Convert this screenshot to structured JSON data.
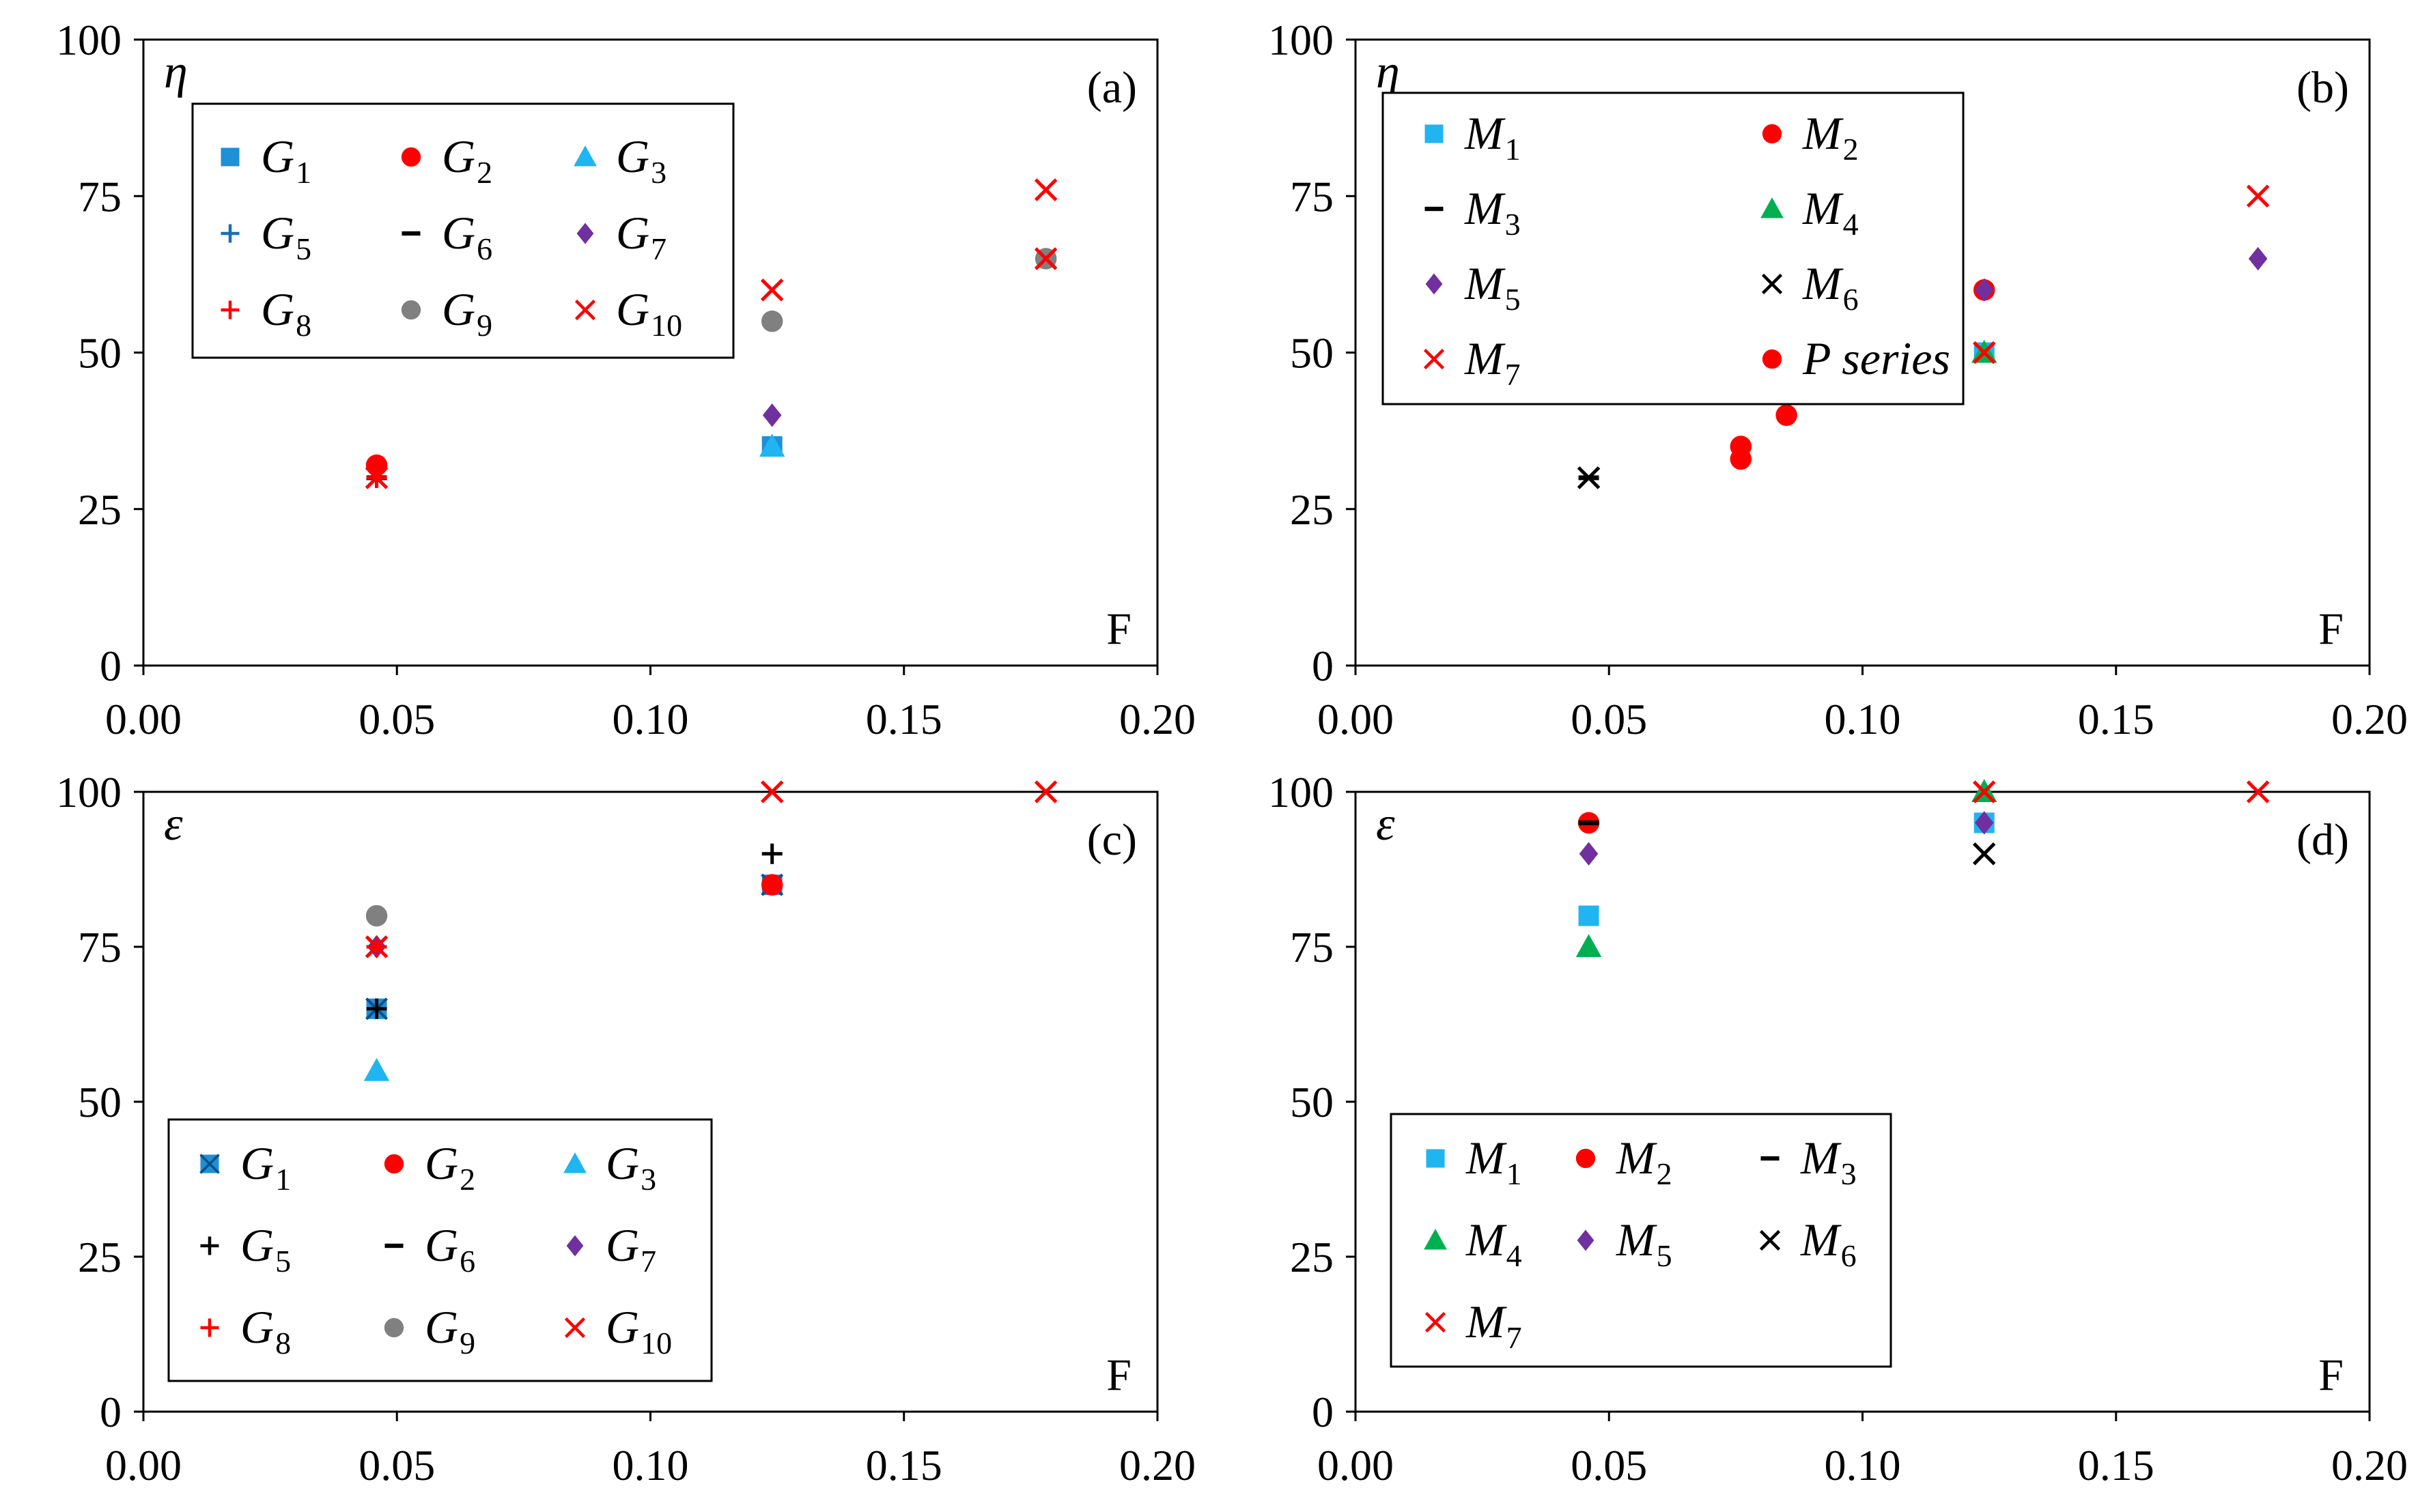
{
  "chart_data": [
    {
      "type": "scatter",
      "panel_label": "(a)",
      "ylabel": "η",
      "xlabel": "F",
      "xlim": [
        0,
        0.2
      ],
      "ylim": [
        0,
        100
      ],
      "xticks": [
        "0.00",
        "0.05",
        "0.10",
        "0.15",
        "0.20"
      ],
      "yticks": [
        "0",
        "25",
        "50",
        "75",
        "100"
      ],
      "legend_position": "top-left",
      "legend_cols": 3,
      "series": [
        {
          "name": "G",
          "sub": "1",
          "marker": "square",
          "color": "#1F8FD6",
          "points": [
            [
              0.124,
              35
            ]
          ]
        },
        {
          "name": "G",
          "sub": "2",
          "marker": "circle",
          "color": "#FF0000",
          "points": [
            [
              0.046,
              32
            ]
          ]
        },
        {
          "name": "G",
          "sub": "3",
          "marker": "triangle",
          "color": "#1FB5F0",
          "points": [
            [
              0.124,
              35
            ]
          ]
        },
        {
          "name": "G",
          "sub": "5",
          "marker": "plus",
          "color": "#1A6FB5",
          "points": [
            [
              0.046,
              30
            ]
          ]
        },
        {
          "name": "G",
          "sub": "6",
          "marker": "dash",
          "color": "#000000",
          "points": [
            [
              0.046,
              30
            ]
          ]
        },
        {
          "name": "G",
          "sub": "7",
          "marker": "diamond",
          "color": "#7030A0",
          "points": [
            [
              0.124,
              40
            ]
          ]
        },
        {
          "name": "G",
          "sub": "8",
          "marker": "plus",
          "color": "#FF0000",
          "points": [
            [
              0.046,
              30
            ]
          ]
        },
        {
          "name": "G",
          "sub": "9",
          "marker": "circle",
          "color": "#808080",
          "points": [
            [
              0.124,
              55
            ],
            [
              0.178,
              65
            ]
          ]
        },
        {
          "name": "G",
          "sub": "10",
          "marker": "x",
          "color": "#FF0000",
          "points": [
            [
              0.046,
              30
            ],
            [
              0.124,
              60
            ],
            [
              0.178,
              65
            ],
            [
              0.178,
              76
            ]
          ]
        }
      ]
    },
    {
      "type": "scatter",
      "panel_label": "(b)",
      "ylabel": "η",
      "xlabel": "F",
      "xlim": [
        0,
        0.2
      ],
      "ylim": [
        0,
        100
      ],
      "xticks": [
        "0.00",
        "0.05",
        "0.10",
        "0.15",
        "0.20"
      ],
      "yticks": [
        "0",
        "25",
        "50",
        "75",
        "100"
      ],
      "legend_position": "top-left",
      "legend_cols": 2,
      "series": [
        {
          "name": "M",
          "sub": "1",
          "marker": "square",
          "color": "#1FB5F0",
          "points": [
            [
              0.124,
              50
            ]
          ]
        },
        {
          "name": "M",
          "sub": "2",
          "marker": "circle",
          "color": "#FF0000",
          "points": [
            [
              0.124,
              60
            ]
          ]
        },
        {
          "name": "M",
          "sub": "3",
          "marker": "dash",
          "color": "#000000",
          "points": [
            [
              0.046,
              30
            ]
          ]
        },
        {
          "name": "M",
          "sub": "4",
          "marker": "triangle",
          "color": "#00B050",
          "points": [
            [
              0.124,
              50
            ]
          ]
        },
        {
          "name": "M",
          "sub": "5",
          "marker": "diamond",
          "color": "#7030A0",
          "points": [
            [
              0.124,
              60
            ],
            [
              0.178,
              65
            ]
          ]
        },
        {
          "name": "M",
          "sub": "6",
          "marker": "x",
          "color": "#000000",
          "points": [
            [
              0.046,
              30
            ]
          ]
        },
        {
          "name": "M",
          "sub": "7",
          "marker": "x",
          "color": "#FF0000",
          "points": [
            [
              0.124,
              50
            ],
            [
              0.178,
              75
            ]
          ]
        },
        {
          "name": "P series",
          "sub": "",
          "marker": "circle",
          "color": "#FF0000",
          "points": [
            [
              0.076,
              33
            ],
            [
              0.076,
              35
            ],
            [
              0.085,
              40
            ]
          ]
        }
      ]
    },
    {
      "type": "scatter",
      "panel_label": "(c)",
      "ylabel": "ε",
      "xlabel": "F",
      "xlim": [
        0,
        0.2
      ],
      "ylim": [
        0,
        100
      ],
      "xticks": [
        "0.00",
        "0.05",
        "0.10",
        "0.15",
        "0.20"
      ],
      "yticks": [
        "0",
        "25",
        "50",
        "75",
        "100"
      ],
      "legend_position": "bottom-left",
      "legend_cols": 3,
      "series": [
        {
          "name": "G",
          "sub": "1",
          "marker": "squarex",
          "color": "#1F8FD6",
          "points": [
            [
              0.046,
              65
            ],
            [
              0.124,
              85
            ]
          ]
        },
        {
          "name": "G",
          "sub": "2",
          "marker": "circle",
          "color": "#FF0000",
          "points": [
            [
              0.124,
              85
            ]
          ]
        },
        {
          "name": "G",
          "sub": "3",
          "marker": "triangle",
          "color": "#1FB5F0",
          "points": [
            [
              0.046,
              55
            ]
          ]
        },
        {
          "name": "G",
          "sub": "5",
          "marker": "plus",
          "color": "#000000",
          "points": [
            [
              0.046,
              65
            ],
            [
              0.124,
              90
            ]
          ]
        },
        {
          "name": "G",
          "sub": "6",
          "marker": "dash",
          "color": "#000000",
          "points": [
            [
              0.046,
              80
            ]
          ]
        },
        {
          "name": "G",
          "sub": "7",
          "marker": "diamond",
          "color": "#7030A0",
          "points": [
            [
              0.046,
              75
            ]
          ]
        },
        {
          "name": "G",
          "sub": "8",
          "marker": "plus",
          "color": "#FF0000",
          "points": [
            [
              0.046,
              75
            ]
          ]
        },
        {
          "name": "G",
          "sub": "9",
          "marker": "circle",
          "color": "#808080",
          "points": [
            [
              0.046,
              80
            ]
          ]
        },
        {
          "name": "G",
          "sub": "10",
          "marker": "x",
          "color": "#FF0000",
          "points": [
            [
              0.046,
              75
            ],
            [
              0.124,
              100
            ],
            [
              0.178,
              100
            ]
          ]
        }
      ]
    },
    {
      "type": "scatter",
      "panel_label": "(d)",
      "ylabel": "ε",
      "xlabel": "F",
      "xlim": [
        0,
        0.2
      ],
      "ylim": [
        0,
        100
      ],
      "xticks": [
        "0.00",
        "0.05",
        "0.10",
        "0.15",
        "0.20"
      ],
      "yticks": [
        "0",
        "25",
        "50",
        "75",
        "100"
      ],
      "legend_position": "bottom-left",
      "legend_cols": 3,
      "series": [
        {
          "name": "M",
          "sub": "1",
          "marker": "square",
          "color": "#1FB5F0",
          "points": [
            [
              0.046,
              80
            ],
            [
              0.124,
              95
            ]
          ]
        },
        {
          "name": "M",
          "sub": "2",
          "marker": "circle",
          "color": "#FF0000",
          "points": [
            [
              0.046,
              95
            ]
          ]
        },
        {
          "name": "M",
          "sub": "3",
          "marker": "dash",
          "color": "#000000",
          "points": [
            [
              0.046,
              95
            ]
          ]
        },
        {
          "name": "M",
          "sub": "4",
          "marker": "triangle",
          "color": "#00B050",
          "points": [
            [
              0.046,
              75
            ],
            [
              0.124,
              100
            ]
          ]
        },
        {
          "name": "M",
          "sub": "5",
          "marker": "diamond",
          "color": "#7030A0",
          "points": [
            [
              0.046,
              90
            ],
            [
              0.124,
              95
            ]
          ]
        },
        {
          "name": "M",
          "sub": "6",
          "marker": "x",
          "color": "#000000",
          "points": [
            [
              0.124,
              90
            ]
          ]
        },
        {
          "name": "M",
          "sub": "7",
          "marker": "x",
          "color": "#FF0000",
          "points": [
            [
              0.124,
              100
            ],
            [
              0.178,
              100
            ]
          ]
        }
      ]
    }
  ]
}
